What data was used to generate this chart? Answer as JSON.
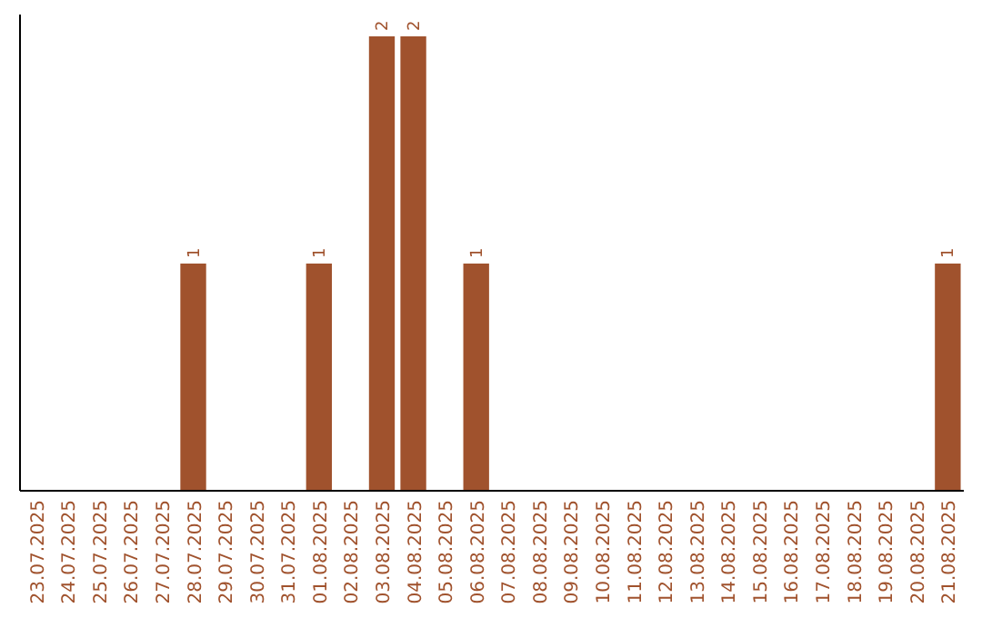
{
  "chart_data": {
    "type": "bar",
    "categories": [
      "23.07.2025",
      "24.07.2025",
      "25.07.2025",
      "26.07.2025",
      "27.07.2025",
      "28.07.2025",
      "29.07.2025",
      "30.07.2025",
      "31.07.2025",
      "01.08.2025",
      "02.08.2025",
      "03.08.2025",
      "04.08.2025",
      "05.08.2025",
      "06.08.2025",
      "07.08.2025",
      "08.08.2025",
      "09.08.2025",
      "10.08.2025",
      "11.08.2025",
      "12.08.2025",
      "13.08.2025",
      "14.08.2025",
      "15.08.2025",
      "16.08.2025",
      "17.08.2025",
      "18.08.2025",
      "19.08.2025",
      "20.08.2025",
      "21.08.2025"
    ],
    "values": [
      0,
      0,
      0,
      0,
      0,
      1,
      0,
      0,
      0,
      1,
      0,
      2,
      2,
      0,
      1,
      0,
      0,
      0,
      0,
      0,
      0,
      0,
      0,
      0,
      0,
      0,
      0,
      0,
      0,
      1
    ],
    "value_labels": [
      null,
      null,
      null,
      null,
      null,
      "1",
      null,
      null,
      null,
      "1",
      null,
      "2",
      "2",
      null,
      "1",
      null,
      null,
      null,
      null,
      null,
      null,
      null,
      null,
      null,
      null,
      null,
      null,
      null,
      null,
      "1"
    ],
    "color": "#a0522d"
  }
}
